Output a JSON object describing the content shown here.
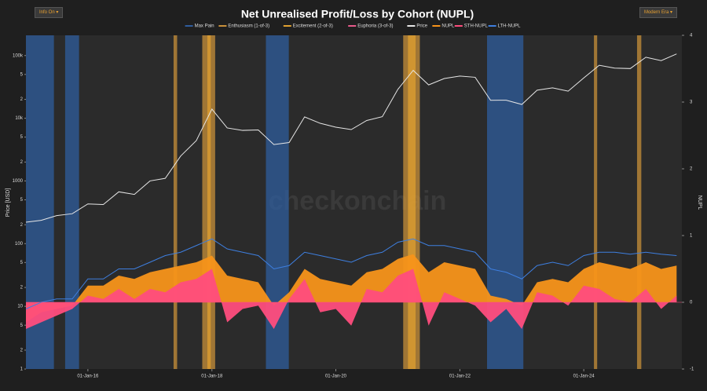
{
  "controls": {
    "left": "Info On ▾",
    "right": "Modern Era ▾"
  },
  "watermark": "checkonchain",
  "chart_data": {
    "type": "line",
    "title": "Net Unrealised Profit/Loss by Cohort (NUPL)",
    "y_label": "Price [USD]",
    "y2_label": "NUPL",
    "log_y": true,
    "xlim": [
      "2015-01-01",
      "2025-08-01"
    ],
    "ylim": [
      1,
      210000
    ],
    "y2lim": [
      -1,
      4
    ],
    "xticks": [
      {
        "value": "2016-01-01",
        "label": "01-Jan-16"
      },
      {
        "value": "2018-01-01",
        "label": "01-Jan-18"
      },
      {
        "value": "2020-01-01",
        "label": "01-Jan-20"
      },
      {
        "value": "2022-01-01",
        "label": "01-Jan-22"
      },
      {
        "value": "2024-01-01",
        "label": "01-Jan-24"
      }
    ],
    "yticks": [
      1,
      {
        "value": 2,
        "label": "2"
      },
      {
        "value": 5,
        "label": "5"
      },
      10,
      {
        "value": 20,
        "label": "2"
      },
      {
        "value": 50,
        "label": "5"
      },
      100,
      {
        "value": 200,
        "label": "2"
      },
      {
        "value": 500,
        "label": "5"
      },
      1000,
      {
        "value": 2000,
        "label": "2"
      },
      {
        "value": 5000,
        "label": "5"
      },
      {
        "value": 10000,
        "label": "10k"
      },
      {
        "value": 20000,
        "label": "2"
      },
      {
        "value": 50000,
        "label": "5"
      },
      {
        "value": 100000,
        "label": "100k"
      }
    ],
    "y2ticks": [
      -1,
      0,
      1,
      2,
      3,
      4
    ],
    "regimes": [
      {
        "name": "Max Pain",
        "color": "#2f5d9e",
        "ranges": [
          [
            "2015-01-01",
            "2015-06-15"
          ],
          [
            "2015-08-20",
            "2015-11-10"
          ],
          [
            "2018-11-15",
            "2019-03-30"
          ],
          [
            "2022-06-10",
            "2023-01-10"
          ]
        ]
      },
      {
        "name": "Enthusiasm (1-of-3)",
        "color": "#c8903a",
        "ranges": [
          [
            "2017-05-20",
            "2017-06-10"
          ],
          [
            "2017-11-05",
            "2018-01-20"
          ],
          [
            "2021-02-01",
            "2021-05-10"
          ],
          [
            "2024-03-01",
            "2024-03-20"
          ],
          [
            "2024-11-10",
            "2024-12-05"
          ]
        ]
      },
      {
        "name": "Excitement (2-of-3)",
        "color": "#e0a030",
        "ranges": [
          [
            "2017-12-05",
            "2017-12-25"
          ],
          [
            "2021-03-01",
            "2021-04-15"
          ]
        ]
      },
      {
        "name": "Euphoria (3-of-3)",
        "color": "#e85a8a",
        "ranges": []
      }
    ],
    "x": [
      "2015-01-01",
      "2015-04-01",
      "2015-07-01",
      "2015-10-01",
      "2016-01-01",
      "2016-04-01",
      "2016-07-01",
      "2016-10-01",
      "2017-01-01",
      "2017-04-01",
      "2017-07-01",
      "2017-10-01",
      "2018-01-01",
      "2018-04-01",
      "2018-07-01",
      "2018-10-01",
      "2019-01-01",
      "2019-04-01",
      "2019-07-01",
      "2019-10-01",
      "2020-01-01",
      "2020-04-01",
      "2020-07-01",
      "2020-10-01",
      "2021-01-01",
      "2021-04-01",
      "2021-07-01",
      "2021-10-01",
      "2022-01-01",
      "2022-04-01",
      "2022-07-01",
      "2022-10-01",
      "2023-01-01",
      "2023-04-01",
      "2023-07-01",
      "2023-10-01",
      "2024-01-01",
      "2024-04-01",
      "2024-07-01",
      "2024-10-01",
      "2025-01-01",
      "2025-04-01",
      "2025-07-01"
    ],
    "series": [
      {
        "name": "Price",
        "color": "#e6e6e6",
        "axis": "y",
        "style": "line",
        "values": [
          220,
          235,
          280,
          300,
          430,
          420,
          670,
          610,
          1000,
          1100,
          2500,
          4400,
          14000,
          7000,
          6400,
          6500,
          3800,
          4100,
          10500,
          8300,
          7200,
          6600,
          9200,
          10600,
          29000,
          58000,
          34000,
          43000,
          47000,
          45000,
          19300,
          19400,
          16600,
          28000,
          30500,
          27000,
          44000,
          70000,
          63000,
          62000,
          94000,
          83000,
          106000
        ]
      },
      {
        "name": "NUPL",
        "color": "#f7931a",
        "axis": "y2",
        "style": "area",
        "values": [
          -0.3,
          -0.15,
          -0.1,
          -0.05,
          0.25,
          0.25,
          0.4,
          0.35,
          0.45,
          0.5,
          0.55,
          0.6,
          0.7,
          0.4,
          0.35,
          0.3,
          -0.05,
          0.15,
          0.5,
          0.35,
          0.3,
          0.25,
          0.45,
          0.5,
          0.65,
          0.72,
          0.45,
          0.6,
          0.55,
          0.5,
          0.1,
          0.05,
          -0.05,
          0.3,
          0.35,
          0.3,
          0.5,
          0.6,
          0.55,
          0.5,
          0.6,
          0.5,
          0.55
        ]
      },
      {
        "name": "STH-NUPL",
        "color": "#ff4d7d",
        "axis": "y2",
        "style": "area",
        "values": [
          -0.4,
          -0.3,
          -0.2,
          -0.1,
          0.1,
          0.05,
          0.2,
          0.05,
          0.2,
          0.15,
          0.3,
          0.35,
          0.5,
          -0.3,
          -0.1,
          -0.05,
          -0.4,
          0.05,
          0.35,
          -0.15,
          -0.1,
          -0.35,
          0.2,
          0.15,
          0.4,
          0.5,
          -0.35,
          0.15,
          0.05,
          -0.05,
          -0.3,
          -0.1,
          -0.4,
          0.15,
          0.1,
          -0.05,
          0.25,
          0.2,
          0.05,
          0.0,
          0.2,
          -0.1,
          0.1
        ]
      },
      {
        "name": "LTH-NUPL",
        "color": "#3e7fe0",
        "axis": "y2",
        "style": "line",
        "values": [
          -0.1,
          0.0,
          0.05,
          0.05,
          0.35,
          0.35,
          0.5,
          0.5,
          0.6,
          0.7,
          0.75,
          0.85,
          0.95,
          0.8,
          0.75,
          0.7,
          0.5,
          0.55,
          0.75,
          0.7,
          0.65,
          0.6,
          0.7,
          0.75,
          0.9,
          0.95,
          0.85,
          0.85,
          0.8,
          0.75,
          0.5,
          0.45,
          0.35,
          0.55,
          0.6,
          0.55,
          0.7,
          0.75,
          0.75,
          0.72,
          0.75,
          0.72,
          0.7
        ]
      }
    ]
  }
}
